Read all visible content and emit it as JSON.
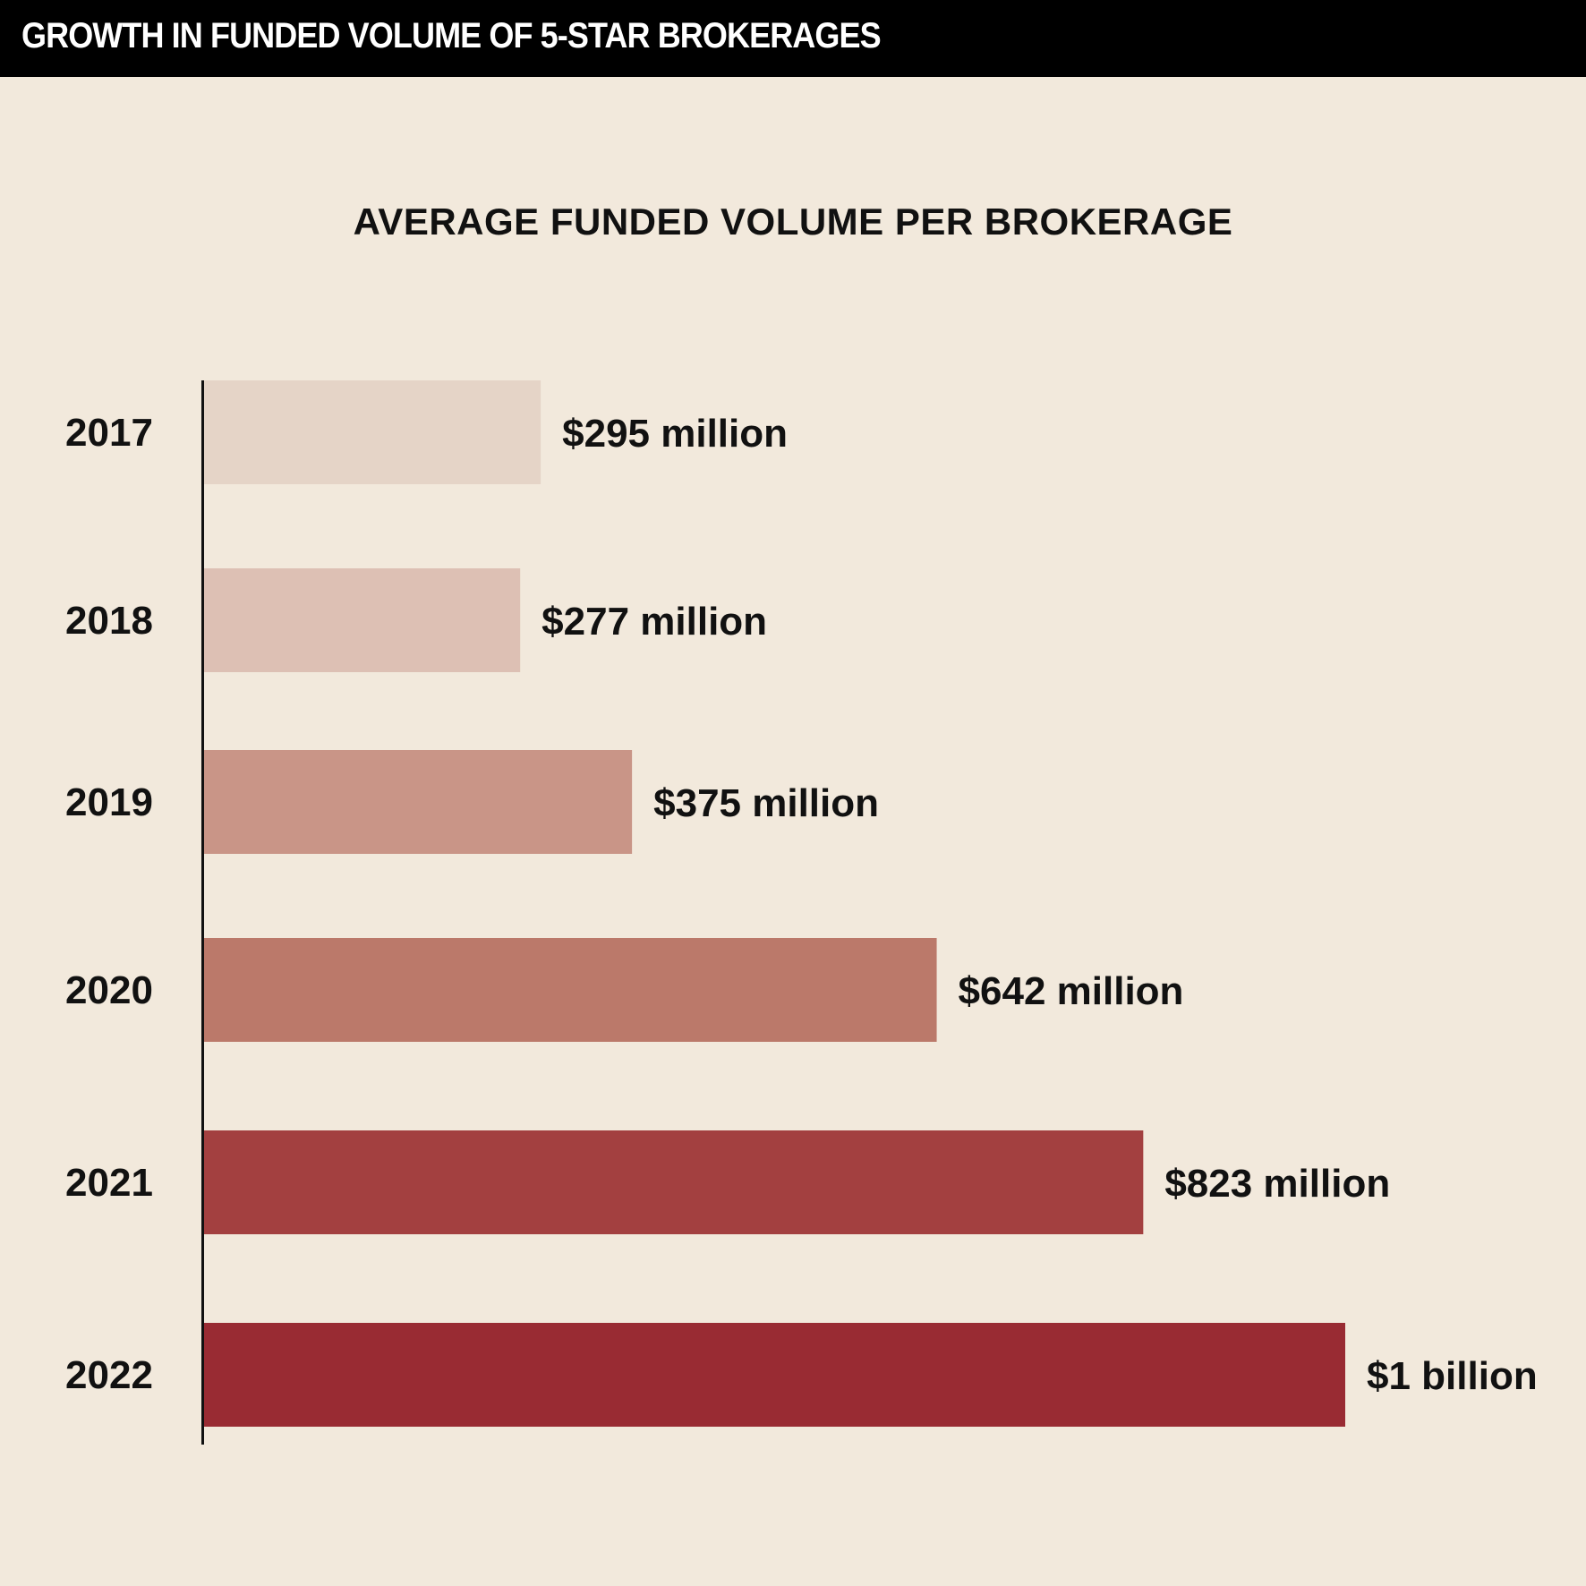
{
  "header": {
    "title": "GROWTH IN FUNDED VOLUME OF 5-STAR BROKERAGES"
  },
  "chart_data": {
    "type": "bar",
    "orientation": "horizontal",
    "title": "AVERAGE FUNDED VOLUME PER BROKERAGE",
    "xlabel": "",
    "ylabel": "",
    "unit": "million USD",
    "categories": [
      "2017",
      "2018",
      "2019",
      "2020",
      "2021",
      "2022"
    ],
    "values": [
      295,
      277,
      375,
      642,
      823,
      1000
    ],
    "data_labels": [
      "$295 million",
      "$277 million",
      "$375 million",
      "$642 million",
      "$823 million",
      "$1 billion"
    ],
    "colors": [
      "#e5d4c7",
      "#ddc0b4",
      "#c99587",
      "#bb796a",
      "#a34040",
      "#992b33"
    ],
    "xlim": [
      0,
      1000
    ],
    "grid": false,
    "legend": "none"
  }
}
